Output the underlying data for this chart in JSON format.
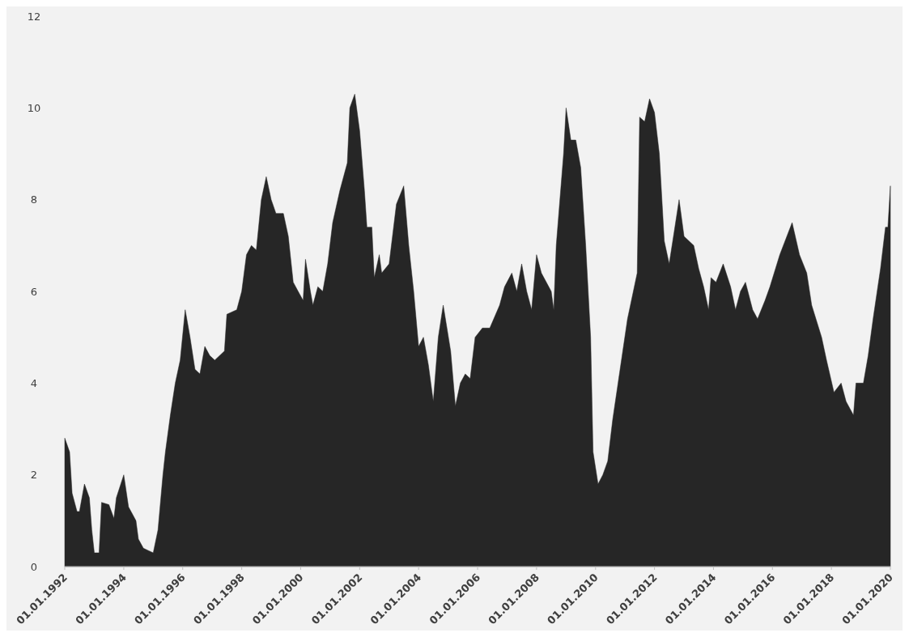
{
  "chart_data": {
    "type": "area",
    "x": [
      "1992-01",
      "1992-03",
      "1992-04",
      "1992-06",
      "1992-07",
      "1992-09",
      "1992-11",
      "1992-12",
      "1993-01",
      "1993-03",
      "1993-04",
      "1993-07",
      "1993-09",
      "1993-10",
      "1994-01",
      "1994-03",
      "1994-04",
      "1994-06",
      "1994-07",
      "1994-09",
      "1994-11",
      "1995-01",
      "1995-03",
      "1995-05",
      "1995-06",
      "1995-08",
      "1995-10",
      "1995-12",
      "1996-02",
      "1996-04",
      "1996-06",
      "1996-08",
      "1996-10",
      "1996-12",
      "1997-02",
      "1997-06",
      "1997-07",
      "1997-11",
      "1998-01",
      "1998-03",
      "1998-05",
      "1998-07",
      "1998-09",
      "1998-11",
      "1999-01",
      "1999-03",
      "1999-06",
      "1999-08",
      "1999-10",
      "1999-12",
      "2000-02",
      "2000-03",
      "2000-05",
      "2000-06",
      "2000-08",
      "2000-10",
      "2000-12",
      "2001-02",
      "2001-05",
      "2001-08",
      "2001-09",
      "2001-11",
      "2002-01",
      "2002-03",
      "2002-04",
      "2002-06",
      "2002-07",
      "2002-09",
      "2002-10",
      "2003-01",
      "2003-04",
      "2003-07",
      "2003-09",
      "2003-11",
      "2004-01",
      "2004-03",
      "2004-05",
      "2004-07",
      "2004-09",
      "2004-11",
      "2005-02",
      "2005-04",
      "2005-06",
      "2005-08",
      "2005-10",
      "2005-12",
      "2006-03",
      "2006-06",
      "2006-10",
      "2006-12",
      "2007-03",
      "2007-05",
      "2007-07",
      "2007-09",
      "2007-11",
      "2008-01",
      "2008-03",
      "2008-07",
      "2008-08",
      "2008-09",
      "2008-12",
      "2009-01",
      "2009-03",
      "2009-05",
      "2009-07",
      "2009-09",
      "2009-11",
      "2009-12",
      "2010-02",
      "2010-04",
      "2010-06",
      "2010-08",
      "2010-11",
      "2011-02",
      "2011-06",
      "2011-07",
      "2011-09",
      "2011-11",
      "2012-01",
      "2012-03",
      "2012-05",
      "2012-07",
      "2012-09",
      "2012-11",
      "2013-01",
      "2013-05",
      "2013-07",
      "2013-09",
      "2013-11",
      "2013-12",
      "2014-02",
      "2014-05",
      "2014-08",
      "2014-10",
      "2014-12",
      "2015-02",
      "2015-05",
      "2015-07",
      "2015-10",
      "2015-12",
      "2016-04",
      "2016-09",
      "2016-12",
      "2017-03",
      "2017-05",
      "2017-09",
      "2017-11",
      "2018-02",
      "2018-05",
      "2018-07",
      "2018-10",
      "2018-11",
      "2019-02",
      "2019-04",
      "2019-06",
      "2019-09",
      "2019-11",
      "2019-12",
      "2020-01"
    ],
    "series": [
      {
        "color": "#262626",
        "values": [
          2.8,
          2.5,
          1.6,
          1.2,
          1.2,
          1.8,
          1.5,
          0.8,
          0.3,
          0.3,
          1.4,
          1.35,
          1.05,
          1.5,
          2.0,
          1.3,
          1.2,
          1.0,
          0.6,
          0.4,
          0.35,
          0.3,
          0.8,
          2.0,
          2.5,
          3.3,
          4.0,
          4.5,
          5.6,
          5.0,
          4.3,
          4.2,
          4.8,
          4.6,
          4.5,
          4.7,
          5.5,
          5.6,
          6.0,
          6.8,
          7.0,
          6.9,
          8.0,
          8.5,
          8.0,
          7.7,
          7.7,
          7.2,
          6.2,
          6.0,
          5.8,
          6.7,
          6.0,
          5.7,
          6.1,
          6.0,
          6.6,
          7.5,
          8.2,
          8.8,
          10.0,
          10.3,
          9.5,
          8.2,
          7.4,
          7.4,
          6.3,
          6.8,
          6.4,
          6.6,
          7.9,
          8.3,
          7.0,
          6.0,
          4.8,
          5.0,
          4.4,
          3.6,
          5.0,
          5.7,
          4.7,
          3.5,
          4.0,
          4.2,
          4.1,
          5.0,
          5.2,
          5.2,
          5.7,
          6.1,
          6.4,
          6.0,
          6.6,
          6.0,
          5.6,
          6.8,
          6.4,
          6.0,
          5.6,
          7.0,
          9.0,
          10.0,
          9.3,
          9.3,
          8.7,
          7.0,
          5.0,
          2.5,
          1.8,
          2.0,
          2.3,
          3.2,
          4.3,
          5.4,
          6.4,
          9.8,
          9.7,
          10.2,
          9.9,
          9.0,
          7.1,
          6.6,
          7.3,
          8.0,
          7.2,
          7.0,
          6.5,
          6.1,
          5.6,
          6.3,
          6.2,
          6.6,
          6.1,
          5.6,
          6.0,
          6.2,
          5.6,
          5.4,
          5.8,
          6.1,
          6.8,
          7.5,
          6.8,
          6.4,
          5.7,
          5.0,
          4.5,
          3.8,
          4.0,
          3.6,
          3.3,
          4.0,
          4.0,
          4.6,
          5.4,
          6.5,
          7.4,
          7.4,
          8.3
        ]
      }
    ],
    "xlim": [
      "1992-01",
      "2020-01"
    ],
    "xticks": [
      {
        "value": "1992-01-01",
        "label": "01.01.1992"
      },
      {
        "value": "1994-01-01",
        "label": "01.01.1994"
      },
      {
        "value": "1996-01-01",
        "label": "01.01.1996"
      },
      {
        "value": "1998-01-01",
        "label": "01.01.1998"
      },
      {
        "value": "2000-01-01",
        "label": "01.01.2000"
      },
      {
        "value": "2002-01-01",
        "label": "01.01.2002"
      },
      {
        "value": "2004-01-01",
        "label": "01.01.2004"
      },
      {
        "value": "2006-01-01",
        "label": "01.01.2006"
      },
      {
        "value": "2008-01-01",
        "label": "01.01.2008"
      },
      {
        "value": "2010-01-01",
        "label": "01.01.2010"
      },
      {
        "value": "2012-01-01",
        "label": "01.01.2012"
      },
      {
        "value": "2014-01-01",
        "label": "01.01.2014"
      },
      {
        "value": "2016-01-01",
        "label": "01.01.2016"
      },
      {
        "value": "2018-01-01",
        "label": "01.01.2018"
      },
      {
        "value": "2020-01-01",
        "label": "01.01.2020"
      }
    ],
    "ylim": [
      0,
      12
    ],
    "yticks": [
      0,
      2,
      4,
      6,
      8,
      10,
      12
    ]
  }
}
